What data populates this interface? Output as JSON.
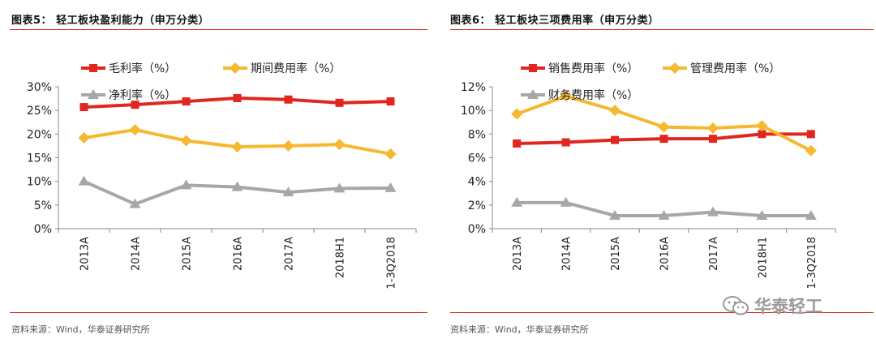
{
  "charts": [
    {
      "figure_title": "图表5：  轻工板块盈利能力（申万分类）",
      "source": "资料来源：Wind，华泰证券研究所"
    },
    {
      "figure_title": "图表6：  轻工板块三项费用率（申万分类）",
      "source": "资料来源：Wind，华泰证券研究所"
    }
  ],
  "watermark": {
    "text": "华泰轻工",
    "icon": "wechat-icon"
  },
  "colors": {
    "accent_rule": "#d7261e",
    "series_red": "#e0261f",
    "series_yellow": "#f5b82e",
    "series_gray": "#a7a7a7"
  },
  "chart_data": [
    {
      "type": "line",
      "categories": [
        "2013A",
        "2014A",
        "2015A",
        "2016A",
        "2017A",
        "2018H1",
        "1-3Q2018"
      ],
      "ylim": [
        0,
        30
      ],
      "yticks": [
        "0%",
        "5%",
        "10%",
        "15%",
        "20%",
        "25%",
        "30%"
      ],
      "grid": false,
      "legend": "top",
      "series": [
        {
          "name": "毛利率（%）",
          "marker": "square",
          "color": "#e0261f",
          "values": [
            25.7,
            26.2,
            26.9,
            27.6,
            27.3,
            26.6,
            26.9
          ]
        },
        {
          "name": "期间费用率（%）",
          "marker": "diamond",
          "color": "#f5b82e",
          "values": [
            19.2,
            20.9,
            18.6,
            17.3,
            17.5,
            17.8,
            15.8
          ]
        },
        {
          "name": "净利率（%）",
          "marker": "triangle",
          "color": "#a7a7a7",
          "values": [
            10.0,
            5.2,
            9.2,
            8.8,
            7.7,
            8.5,
            8.6
          ]
        }
      ]
    },
    {
      "type": "line",
      "categories": [
        "2013A",
        "2014A",
        "2015A",
        "2016A",
        "2017A",
        "2018H1",
        "1-3Q2018"
      ],
      "ylim": [
        0,
        12
      ],
      "yticks": [
        "0%",
        "2%",
        "4%",
        "6%",
        "8%",
        "10%",
        "12%"
      ],
      "grid": false,
      "legend": "top",
      "series": [
        {
          "name": "销售费用率（%）",
          "marker": "square",
          "color": "#e0261f",
          "values": [
            7.2,
            7.3,
            7.5,
            7.6,
            7.6,
            8.0,
            8.0
          ]
        },
        {
          "name": "管理费用率（%）",
          "marker": "diamond",
          "color": "#f5b82e",
          "values": [
            9.7,
            11.2,
            10.0,
            8.6,
            8.5,
            8.7,
            6.6
          ]
        },
        {
          "name": "财务费用率（%）",
          "marker": "triangle",
          "color": "#a7a7a7",
          "values": [
            2.2,
            2.2,
            1.1,
            1.1,
            1.4,
            1.1,
            1.1
          ]
        }
      ]
    }
  ]
}
